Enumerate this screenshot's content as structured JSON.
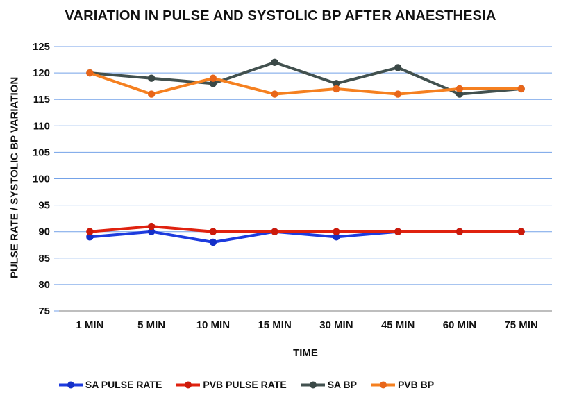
{
  "chart_data": {
    "type": "line",
    "title": "VARIATION IN PULSE AND SYSTOLIC BP AFTER ANAESTHESIA",
    "xlabel": "TIME",
    "ylabel": "PULSE RATE / SYSTOLIC BP VARIATION",
    "categories": [
      "1 MIN",
      "5 MIN",
      "10 MIN",
      "15 MIN",
      "30 MIN",
      "45 MIN",
      "60 MIN",
      "75 MIN"
    ],
    "ylim": [
      75,
      125
    ],
    "ytick_step": 5,
    "ytick_labels": [
      "75",
      "80",
      "85",
      "90",
      "95",
      "100",
      "105",
      "110",
      "115",
      "120",
      "125"
    ],
    "grid": true,
    "legend_position": "bottom",
    "marker": "circle",
    "series": [
      {
        "name": "SA PULSE RATE",
        "color": "#1D3BDE",
        "marker_color": "#1530C8",
        "values": [
          89,
          90,
          88,
          90,
          89,
          90,
          90,
          90
        ]
      },
      {
        "name": "PVB PULSE RATE",
        "color": "#E0220F",
        "marker_color": "#CC1A0A",
        "values": [
          90,
          91,
          90,
          90,
          90,
          90,
          90,
          90
        ]
      },
      {
        "name": "SA BP",
        "color": "#42514F",
        "marker_color": "#3A4846",
        "values": [
          120,
          119,
          118,
          122,
          118,
          121,
          116,
          117
        ]
      },
      {
        "name": "PVB BP",
        "color": "#F58020",
        "marker_color": "#E8661A",
        "values": [
          120,
          116,
          119,
          116,
          117,
          116,
          117,
          117
        ]
      }
    ],
    "colors": {
      "gridline": "#74A2E8",
      "axis_line": "#969696",
      "text": "#111111",
      "background": "#FFFFFF"
    }
  }
}
